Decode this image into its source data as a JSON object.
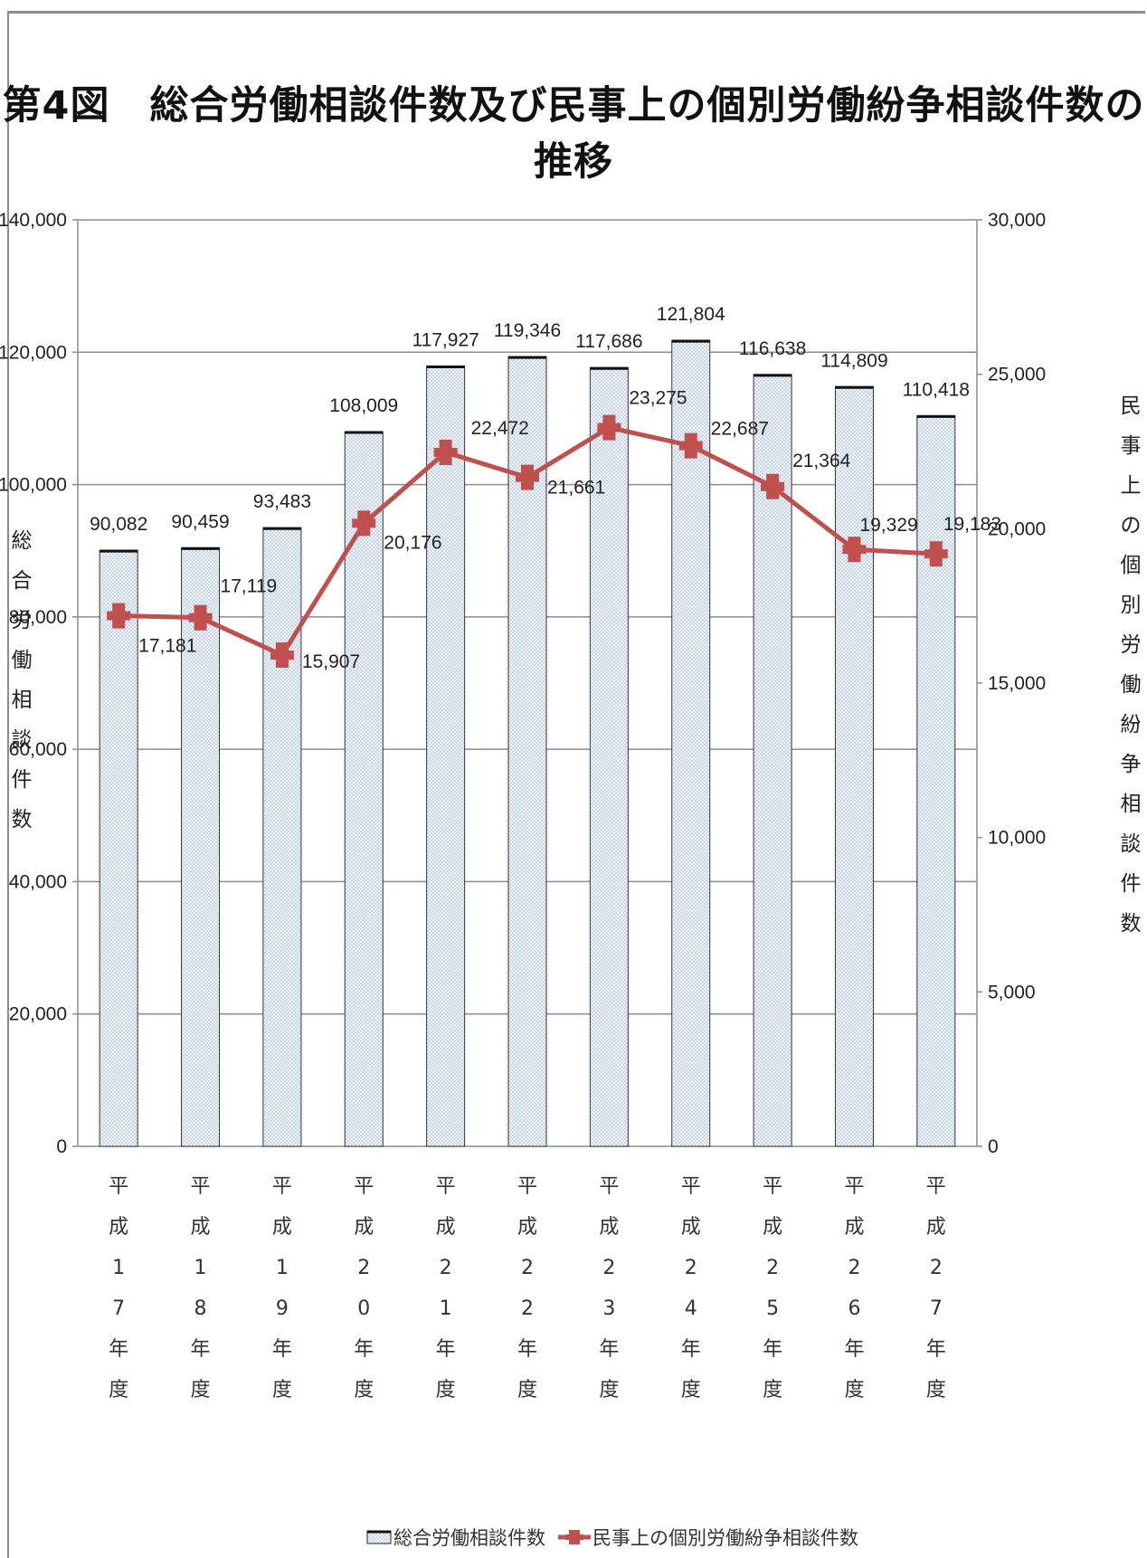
{
  "chart_data": {
    "type": "bar",
    "title": "第4図　総合労働相談件数及び民事上の個別労働紛争相談件数の推移",
    "categories": [
      "平成17年度",
      "平成18年度",
      "平成19年度",
      "平成20年度",
      "平成21年度",
      "平成22年度",
      "平成23年度",
      "平成24年度",
      "平成25年度",
      "平成26年度",
      "平成27年度"
    ],
    "series": [
      {
        "name": "総合労働相談件数",
        "type": "bar",
        "axis": "left",
        "values": [
          90082,
          90459,
          93483,
          108009,
          117927,
          119346,
          117686,
          121804,
          116638,
          114809,
          110418
        ],
        "labels": [
          "90,082",
          "90,459",
          "93,483",
          "108,009",
          "117,927",
          "119,346",
          "117,686",
          "121,804",
          "116,638",
          "114,809",
          "110,418"
        ]
      },
      {
        "name": "民事上の個別労働紛争相談件数",
        "type": "line",
        "axis": "right",
        "color": "#c0504d",
        "values": [
          17181,
          17119,
          15907,
          20176,
          22472,
          21661,
          23275,
          22687,
          21364,
          19329,
          19183
        ],
        "labels": [
          "17,181",
          "17,119",
          "15,907",
          "20,176",
          "22,472",
          "21,661",
          "23,275",
          "22,687",
          "21,364",
          "19,329",
          "19,183"
        ]
      }
    ],
    "ylabel": "総合労働相談件数",
    "y2label": "民事上の個別労働紛争相談件数",
    "ylim": [
      0,
      140000
    ],
    "y2lim": [
      0,
      30000
    ],
    "yticks": [
      "0",
      "20,000",
      "40,000",
      "60,000",
      "80,000",
      "100,000",
      "120,000",
      "140,000"
    ],
    "y2ticks": [
      "0",
      "5,000",
      "10,000",
      "15,000",
      "20,000",
      "25,000",
      "30,000"
    ],
    "category_labels_vertical": [
      [
        "平",
        "成",
        "1",
        "7",
        "年",
        "度"
      ],
      [
        "平",
        "成",
        "1",
        "8",
        "年",
        "度"
      ],
      [
        "平",
        "成",
        "1",
        "9",
        "年",
        "度"
      ],
      [
        "平",
        "成",
        "2",
        "0",
        "年",
        "度"
      ],
      [
        "平",
        "成",
        "2",
        "1",
        "年",
        "度"
      ],
      [
        "平",
        "成",
        "2",
        "2",
        "年",
        "度"
      ],
      [
        "平",
        "成",
        "2",
        "3",
        "年",
        "度"
      ],
      [
        "平",
        "成",
        "2",
        "4",
        "年",
        "度"
      ],
      [
        "平",
        "成",
        "2",
        "5",
        "年",
        "度"
      ],
      [
        "平",
        "成",
        "2",
        "6",
        "年",
        "度"
      ],
      [
        "平",
        "成",
        "2",
        "7",
        "年",
        "度"
      ]
    ],
    "grid": true,
    "legend": "bottom",
    "bar_style": "dotted light blue fill",
    "line_color": "#c0504d"
  }
}
